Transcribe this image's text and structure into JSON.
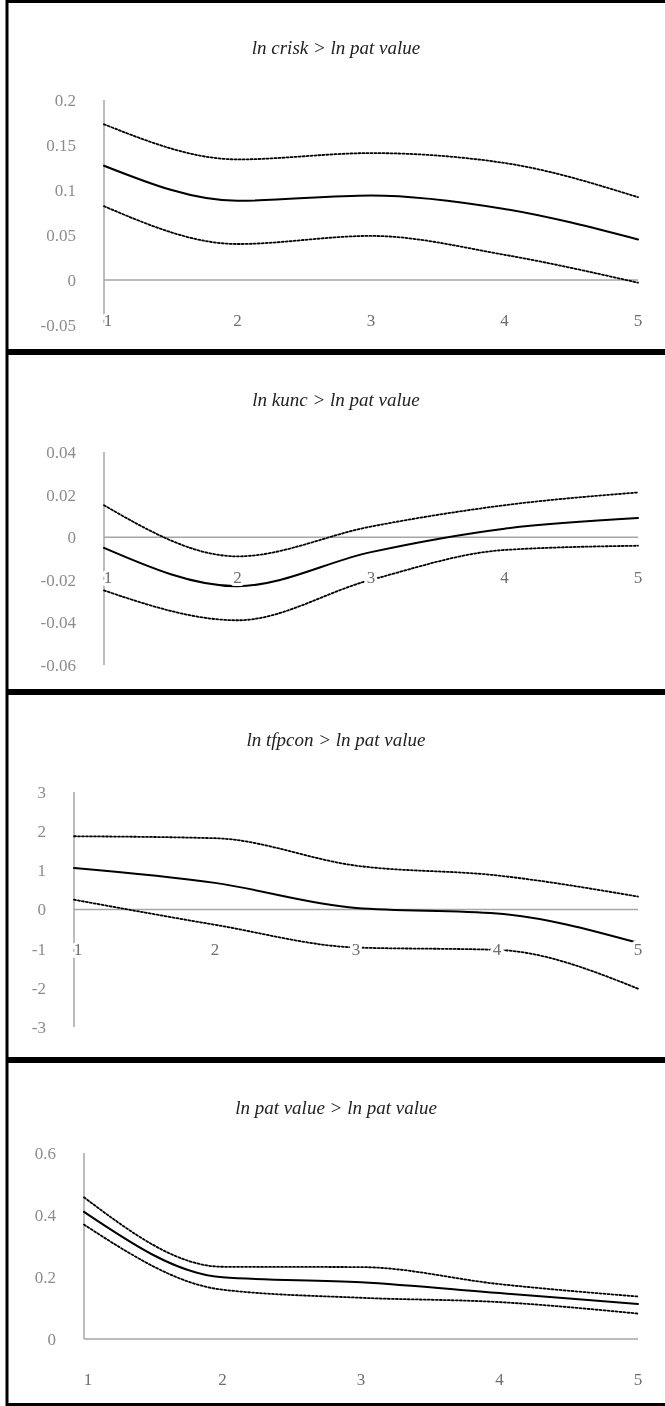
{
  "chart_data": [
    {
      "type": "line",
      "title": "ln crisk > ln pat value",
      "categories": [
        "1",
        "2",
        "3",
        "4",
        "5"
      ],
      "ylim": [
        -0.05,
        0.2
      ],
      "yticks": [
        -0.05,
        0,
        0.05,
        0.1,
        0.15,
        0.2
      ],
      "series": [
        {
          "color": "#000000",
          "line_style": "solid",
          "values": [
            0.127,
            0.088,
            0.094,
            0.079,
            0.045
          ]
        },
        {
          "color": "#000000",
          "line_style": "dotted",
          "values": [
            0.173,
            0.134,
            0.141,
            0.13,
            0.092
          ]
        },
        {
          "color": "#000000",
          "line_style": "dotted",
          "values": [
            0.082,
            0.04,
            0.049,
            0.028,
            -0.003
          ]
        }
      ]
    },
    {
      "type": "line",
      "title": "ln kunc > ln pat value",
      "categories": [
        "1",
        "2",
        "3",
        "4",
        "5"
      ],
      "ylim": [
        -0.06,
        0.04
      ],
      "yticks": [
        -0.06,
        -0.04,
        -0.02,
        0,
        0.02,
        0.04
      ],
      "series": [
        {
          "color": "#000000",
          "line_style": "solid",
          "values": [
            -0.005,
            -0.023,
            -0.007,
            0.004,
            0.009
          ]
        },
        {
          "color": "#000000",
          "line_style": "dotted",
          "values": [
            0.015,
            -0.009,
            0.005,
            0.015,
            0.021
          ]
        },
        {
          "color": "#000000",
          "line_style": "dotted",
          "values": [
            -0.025,
            -0.039,
            -0.02,
            -0.006,
            -0.004
          ]
        }
      ]
    },
    {
      "type": "line",
      "title": "ln tfpcon > ln pat value",
      "categories": [
        "1",
        "2",
        "3",
        "4",
        "5"
      ],
      "ylim": [
        -3,
        3
      ],
      "yticks": [
        -3,
        -2,
        -1,
        0,
        1,
        2,
        3
      ],
      "series": [
        {
          "color": "#000000",
          "line_style": "solid",
          "values": [
            1.06,
            0.68,
            0.04,
            -0.1,
            -0.85
          ]
        },
        {
          "color": "#000000",
          "line_style": "dotted",
          "values": [
            1.87,
            1.82,
            1.12,
            0.87,
            0.33
          ]
        },
        {
          "color": "#000000",
          "line_style": "dotted",
          "values": [
            0.25,
            -0.39,
            -0.97,
            -1.03,
            -2.02
          ]
        }
      ]
    },
    {
      "type": "line",
      "title": "ln pat value > ln pat value",
      "categories": [
        "1",
        "2",
        "3",
        "4",
        "5"
      ],
      "ylim": [
        0,
        0.6
      ],
      "yticks": [
        0,
        0.2,
        0.4,
        0.6
      ],
      "series": [
        {
          "color": "#000000",
          "line_style": "solid",
          "values": [
            0.41,
            0.199,
            0.183,
            0.148,
            0.113
          ]
        },
        {
          "color": "#000000",
          "line_style": "dotted",
          "values": [
            0.457,
            0.233,
            0.232,
            0.177,
            0.137
          ]
        },
        {
          "color": "#000000",
          "line_style": "dotted",
          "values": [
            0.369,
            0.159,
            0.133,
            0.119,
            0.082
          ]
        }
      ]
    }
  ]
}
